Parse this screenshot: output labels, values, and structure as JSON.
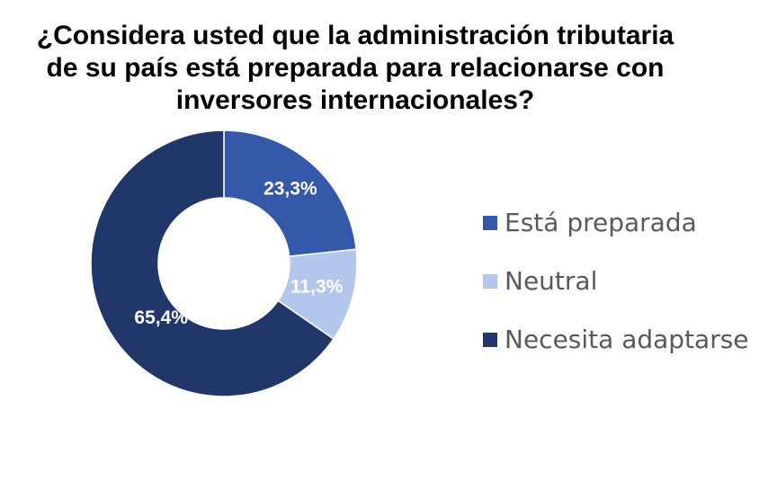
{
  "chart_data": {
    "type": "pie",
    "variant": "donut",
    "title_lines": [
      "¿Considera usted que la administración tributaria",
      "de su país está preparada para relacionarse con",
      "inversores internacionales?"
    ],
    "legend_position": "right",
    "series": [
      {
        "name": "Está preparada",
        "value": 23.3,
        "label": "23,3%",
        "color": "#3558A8"
      },
      {
        "name": "Neutral",
        "value": 11.3,
        "label": "11,3%",
        "color": "#B3C6EC"
      },
      {
        "name": "Necesita adaptarse",
        "value": 65.4,
        "label": "65,4%",
        "color": "#213769"
      }
    ]
  }
}
